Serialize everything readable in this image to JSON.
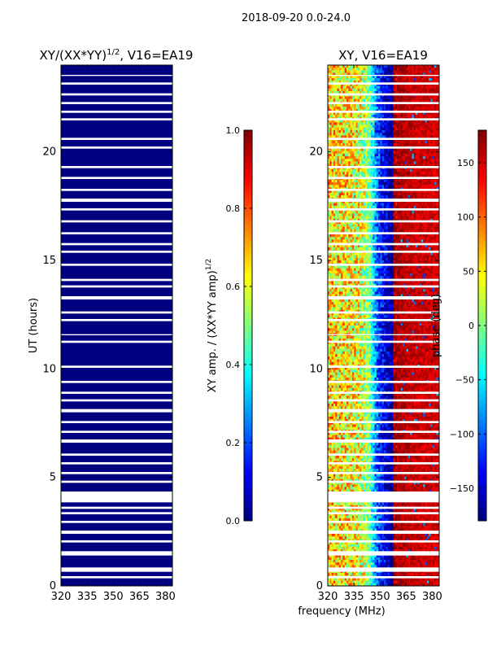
{
  "figure": {
    "suptitle": "2018-09-20 0.0-24.0",
    "xlabel": "frequency (MHz)"
  },
  "colors": {
    "amp_panel_fill": "#00007f",
    "flag_gap": "#ffffff",
    "jet": [
      "#00007f",
      "#0000ff",
      "#007fff",
      "#00ffff",
      "#7fff7f",
      "#ffff00",
      "#ff7f00",
      "#ff0000",
      "#7f0000"
    ]
  },
  "chart_data": [
    {
      "type": "heatmap",
      "title_text": "XY/(XX*YY)",
      "title_sup": "1/2",
      "title_suffix": ", V16=EA19",
      "xlabel": "",
      "ylabel": "UT (hours)",
      "xlim": [
        320,
        384
      ],
      "ylim": [
        0,
        24
      ],
      "xticks": [
        320,
        335,
        350,
        365,
        380
      ],
      "yticks": [
        0,
        5,
        10,
        15,
        20
      ],
      "value_description": "normalized XY amplitude, near 0 everywhere",
      "typical_value": 0.0,
      "flagged_time_ranges_hours": [
        [
          0.35,
          0.45
        ],
        [
          0.65,
          0.85
        ],
        [
          1.4,
          1.6
        ],
        [
          2.0,
          2.1
        ],
        [
          2.4,
          2.55
        ],
        [
          2.9,
          3.0
        ],
        [
          3.3,
          3.4
        ],
        [
          3.55,
          3.65
        ],
        [
          3.85,
          4.35
        ],
        [
          4.75,
          4.85
        ],
        [
          5.15,
          5.25
        ],
        [
          5.6,
          5.7
        ],
        [
          6.0,
          6.1
        ],
        [
          6.6,
          6.75
        ],
        [
          7.05,
          7.15
        ],
        [
          7.5,
          7.6
        ],
        [
          8.0,
          8.15
        ],
        [
          8.5,
          8.6
        ],
        [
          8.85,
          8.95
        ],
        [
          9.35,
          9.45
        ],
        [
          10.05,
          10.15
        ],
        [
          11.2,
          11.3
        ],
        [
          11.55,
          11.6
        ],
        [
          12.2,
          12.3
        ],
        [
          12.55,
          12.65
        ],
        [
          13.2,
          13.35
        ],
        [
          13.75,
          13.85
        ],
        [
          14.05,
          14.15
        ],
        [
          14.75,
          14.85
        ],
        [
          15.35,
          15.45
        ],
        [
          15.7,
          15.8
        ],
        [
          16.2,
          16.3
        ],
        [
          16.75,
          16.85
        ],
        [
          17.3,
          17.4
        ],
        [
          17.7,
          17.85
        ],
        [
          18.2,
          18.3
        ],
        [
          18.75,
          18.85
        ],
        [
          19.25,
          19.35
        ],
        [
          20.15,
          20.25
        ],
        [
          20.55,
          20.65
        ],
        [
          21.45,
          21.55
        ],
        [
          21.8,
          21.9
        ],
        [
          22.2,
          22.3
        ],
        [
          22.6,
          22.7
        ],
        [
          23.1,
          23.2
        ],
        [
          23.5,
          23.55
        ]
      ]
    },
    {
      "type": "heatmap",
      "title_text": "XY, V16=EA19",
      "xlabel": "frequency (MHz)",
      "ylabel": "",
      "xlim": [
        320,
        384
      ],
      "ylim": [
        0,
        24
      ],
      "xticks": [
        320,
        335,
        350,
        365,
        380
      ],
      "yticks": [
        0,
        5,
        10,
        15,
        20
      ],
      "value_description": "XY phase (deg): noisy ~0 to 100 deg below ~340 MHz, green/cyan band near 345 MHz, blue around 350-357 MHz, red (~150-180 deg) above ~360 MHz",
      "phase_profile_deg": {
        "frequencies_mhz": [
          320,
          330,
          338,
          344,
          348,
          352,
          356,
          360,
          368,
          384
        ],
        "phase_deg": [
          60,
          50,
          40,
          0,
          -100,
          -140,
          -170,
          165,
          155,
          150
        ]
      },
      "flagged_time_ranges_hours": [
        [
          0.35,
          0.45
        ],
        [
          0.65,
          0.85
        ],
        [
          1.4,
          1.6
        ],
        [
          2.0,
          2.1
        ],
        [
          2.4,
          2.55
        ],
        [
          2.9,
          3.0
        ],
        [
          3.3,
          3.4
        ],
        [
          3.55,
          3.65
        ],
        [
          3.85,
          4.35
        ],
        [
          4.75,
          4.85
        ],
        [
          5.15,
          5.25
        ],
        [
          5.6,
          5.7
        ],
        [
          6.0,
          6.1
        ],
        [
          6.6,
          6.75
        ],
        [
          7.05,
          7.15
        ],
        [
          7.5,
          7.6
        ],
        [
          8.0,
          8.15
        ],
        [
          8.5,
          8.6
        ],
        [
          8.85,
          8.95
        ],
        [
          9.35,
          9.45
        ],
        [
          10.05,
          10.15
        ],
        [
          11.2,
          11.3
        ],
        [
          11.55,
          11.6
        ],
        [
          12.2,
          12.3
        ],
        [
          12.55,
          12.65
        ],
        [
          13.2,
          13.35
        ],
        [
          13.75,
          13.85
        ],
        [
          14.05,
          14.15
        ],
        [
          14.75,
          14.85
        ],
        [
          15.35,
          15.45
        ],
        [
          15.7,
          15.8
        ],
        [
          16.2,
          16.3
        ],
        [
          16.75,
          16.85
        ],
        [
          17.3,
          17.4
        ],
        [
          17.7,
          17.85
        ],
        [
          18.2,
          18.3
        ],
        [
          18.75,
          18.85
        ],
        [
          19.25,
          19.35
        ],
        [
          20.15,
          20.25
        ],
        [
          20.55,
          20.65
        ],
        [
          21.45,
          21.55
        ],
        [
          21.8,
          21.9
        ],
        [
          22.2,
          22.3
        ],
        [
          22.6,
          22.7
        ],
        [
          23.1,
          23.2
        ],
        [
          23.5,
          23.55
        ]
      ]
    }
  ],
  "colorbars": [
    {
      "label_text": "XY amp. / (XX*YY amp)",
      "label_sup": "1/2",
      "range": [
        0,
        1
      ],
      "ticks": [
        0.0,
        0.2,
        0.4,
        0.6,
        0.8,
        1.0
      ],
      "tick_labels": [
        "0.0",
        "0.2",
        "0.4",
        "0.6",
        "0.8",
        "1.0"
      ]
    },
    {
      "label_text": "phase (deg)",
      "range": [
        -180,
        180
      ],
      "ticks": [
        -150,
        -100,
        -50,
        0,
        50,
        100,
        150
      ],
      "tick_labels": [
        "−150",
        "−100",
        "−50",
        "0",
        "50",
        "100",
        "150"
      ]
    }
  ]
}
